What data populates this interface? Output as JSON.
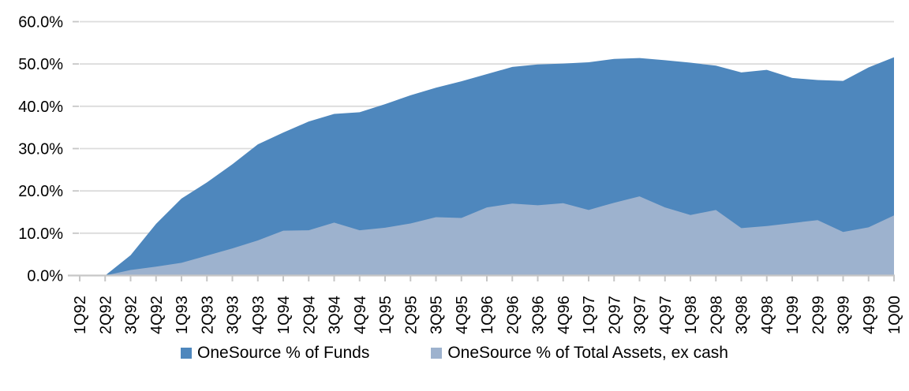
{
  "chart_data": {
    "type": "area",
    "title": "",
    "xlabel": "",
    "ylabel": "",
    "overlaid_not_stacked": true,
    "grid": true,
    "legend_position": "bottom",
    "ylim": [
      0,
      60
    ],
    "yticks": [
      {
        "value": 0,
        "label": "0.0%"
      },
      {
        "value": 10,
        "label": "10.0%"
      },
      {
        "value": 20,
        "label": "20.0%"
      },
      {
        "value": 30,
        "label": "30.0%"
      },
      {
        "value": 40,
        "label": "40.0%"
      },
      {
        "value": 50,
        "label": "50.0%"
      },
      {
        "value": 60,
        "label": "60.0%"
      }
    ],
    "categories": [
      "1Q92",
      "2Q92",
      "3Q92",
      "4Q92",
      "1Q93",
      "2Q93",
      "3Q93",
      "4Q93",
      "1Q94",
      "2Q94",
      "3Q94",
      "4Q94",
      "1Q95",
      "2Q95",
      "3Q95",
      "4Q95",
      "1Q96",
      "2Q96",
      "3Q96",
      "4Q96",
      "1Q97",
      "2Q97",
      "3Q97",
      "4Q97",
      "1Q98",
      "2Q98",
      "3Q98",
      "4Q98",
      "1Q99",
      "2Q99",
      "3Q99",
      "4Q99",
      "1Q00"
    ],
    "series": [
      {
        "name": "OneSource % of Funds",
        "color": "#4E87BD",
        "values": [
          0.0,
          0.0,
          4.8,
          12.2,
          18.2,
          22.0,
          26.3,
          31.0,
          33.8,
          36.4,
          38.2,
          38.6,
          40.5,
          42.6,
          44.4,
          45.9,
          47.6,
          49.3,
          49.9,
          50.1,
          50.4,
          51.2,
          51.4,
          50.9,
          50.3,
          49.6,
          48.0,
          48.6,
          46.7,
          46.2,
          46.0,
          49.2,
          51.6
        ]
      },
      {
        "name": "OneSource % of Total Assets, ex cash",
        "color": "#9DB2CE",
        "values": [
          0.0,
          0.0,
          1.3,
          2.1,
          3.0,
          4.7,
          6.4,
          8.3,
          10.6,
          10.7,
          12.5,
          10.7,
          11.3,
          12.3,
          13.8,
          13.6,
          16.1,
          17.0,
          16.6,
          17.1,
          15.5,
          17.2,
          18.7,
          16.1,
          14.3,
          15.5,
          11.2,
          11.7,
          12.4,
          13.1,
          10.3,
          11.4,
          14.2
        ]
      }
    ]
  },
  "colors": {
    "background": "#FFFFFF",
    "gridline": "#DCDCDC",
    "axis": "#C6C6C6",
    "text": "#000000"
  }
}
